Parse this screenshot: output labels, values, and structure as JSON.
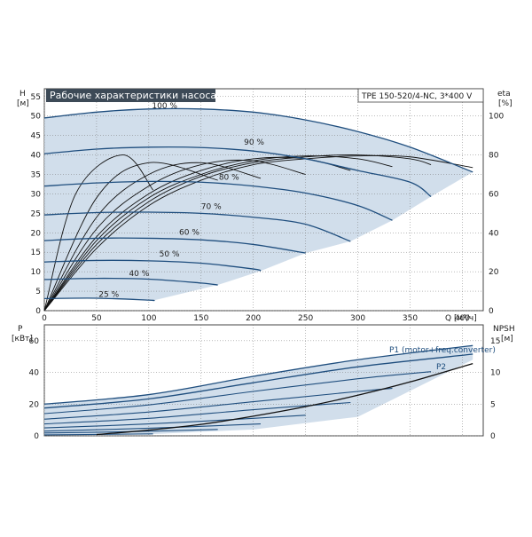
{
  "chart_data": [
    {
      "type": "line",
      "title": "Рабочие характеристики насоса",
      "model": "TPE 150-520/4-NC, 3*400 V",
      "ylabel": "H",
      "ylabel_unit": "[м]",
      "y2label": "eta",
      "y2label_unit": "[%]",
      "xlabel_unit": "Q [м³/ч]",
      "xlim": [
        0,
        420
      ],
      "ylim": [
        0,
        57
      ],
      "y2lim": [
        0,
        114
      ],
      "x_ticks": [
        0,
        50,
        100,
        150,
        200,
        250,
        300,
        350,
        400
      ],
      "y_ticks": [
        0,
        5,
        10,
        15,
        20,
        25,
        30,
        35,
        40,
        45,
        50,
        55
      ],
      "y2_ticks": [
        0,
        20,
        40,
        60,
        80,
        100
      ],
      "grid": true,
      "operating_range_color": "#c9d8e7",
      "curve_color": "#1f4e7e",
      "head_curves": [
        {
          "name": "100 %",
          "label_at": [
            103,
            51.3
          ],
          "points": [
            [
              0,
              49.5
            ],
            [
              50,
              51
            ],
            [
              100,
              51.8
            ],
            [
              150,
              51.8
            ],
            [
              200,
              51
            ],
            [
              250,
              49
            ],
            [
              300,
              46
            ],
            [
              350,
              42
            ],
            [
              410,
              35.6
            ]
          ]
        },
        {
          "name": "90 %",
          "label_at": [
            191,
            42
          ],
          "points": [
            [
              0,
              40.3
            ],
            [
              50,
              41.5
            ],
            [
              100,
              42
            ],
            [
              150,
              41.9
            ],
            [
              200,
              41
            ],
            [
              250,
              39
            ],
            [
              300,
              36
            ],
            [
              350,
              33
            ],
            [
              370,
              29.3
            ]
          ]
        },
        {
          "name": "80 %",
          "label_at": [
            167,
            33
          ],
          "points": [
            [
              0,
              32
            ],
            [
              50,
              32.8
            ],
            [
              100,
              33.2
            ],
            [
              150,
              33
            ],
            [
              200,
              32
            ],
            [
              250,
              30.2
            ],
            [
              300,
              27
            ],
            [
              333,
              23.2
            ]
          ]
        },
        {
          "name": "70 %",
          "label_at": [
            150,
            25.4
          ],
          "points": [
            [
              0,
              24.6
            ],
            [
              50,
              25.2
            ],
            [
              100,
              25.3
            ],
            [
              150,
              25
            ],
            [
              200,
              24
            ],
            [
              250,
              22.2
            ],
            [
              293,
              17.8
            ]
          ]
        },
        {
          "name": "60 %",
          "label_at": [
            129,
            18.8
          ],
          "points": [
            [
              0,
              18
            ],
            [
              50,
              18.6
            ],
            [
              100,
              18.6
            ],
            [
              150,
              18.2
            ],
            [
              200,
              17
            ],
            [
              250,
              14.8
            ]
          ]
        },
        {
          "name": "50 %",
          "label_at": [
            110,
            13.2
          ],
          "points": [
            [
              0,
              12.5
            ],
            [
              50,
              12.9
            ],
            [
              100,
              12.8
            ],
            [
              150,
              12.2
            ],
            [
              200,
              10.7
            ],
            [
              207,
              10.2
            ]
          ]
        },
        {
          "name": "40 %",
          "label_at": [
            81,
            8.2
          ],
          "points": [
            [
              0,
              8
            ],
            [
              50,
              8.3
            ],
            [
              100,
              8.1
            ],
            [
              150,
              7.1
            ],
            [
              166,
              6.6
            ]
          ]
        },
        {
          "name": "25 %",
          "label_at": [
            52,
            2.8
          ],
          "points": [
            [
              0,
              3.1
            ],
            [
              50,
              3.2
            ],
            [
              100,
              2.7
            ],
            [
              104,
              2.6
            ]
          ]
        }
      ],
      "eta_curves": [
        {
          "name": "eta 100 %",
          "points": [
            [
              0,
              0
            ],
            [
              50,
              32
            ],
            [
              100,
              54
            ],
            [
              150,
              67
            ],
            [
              200,
              75
            ],
            [
              250,
              78
            ],
            [
              300,
              79.5
            ],
            [
              350,
              79
            ],
            [
              410,
              73.5
            ]
          ]
        },
        {
          "name": "eta 90 %",
          "points": [
            [
              0,
              0
            ],
            [
              50,
              34
            ],
            [
              100,
              56
            ],
            [
              150,
              69
            ],
            [
              200,
              76
            ],
            [
              250,
              79
            ],
            [
              300,
              80
            ],
            [
              350,
              78
            ],
            [
              370,
              75
            ]
          ]
        },
        {
          "name": "eta 80 %",
          "points": [
            [
              0,
              0
            ],
            [
              50,
              36
            ],
            [
              100,
              58
            ],
            [
              150,
              70
            ],
            [
              200,
              77
            ],
            [
              250,
              79.5
            ],
            [
              300,
              78
            ],
            [
              333,
              74
            ]
          ]
        },
        {
          "name": "eta 70 %",
          "points": [
            [
              0,
              0
            ],
            [
              50,
              38
            ],
            [
              100,
              60
            ],
            [
              150,
              72
            ],
            [
              200,
              78
            ],
            [
              250,
              78
            ],
            [
              293,
              72
            ]
          ]
        },
        {
          "name": "eta 60 %",
          "points": [
            [
              0,
              0
            ],
            [
              50,
              42
            ],
            [
              100,
              64
            ],
            [
              150,
              75
            ],
            [
              200,
              77
            ],
            [
              250,
              70
            ]
          ]
        },
        {
          "name": "eta 50 %",
          "points": [
            [
              0,
              0
            ],
            [
              50,
              48
            ],
            [
              100,
              70
            ],
            [
              150,
              76
            ],
            [
              207,
              68
            ]
          ]
        },
        {
          "name": "eta 40 %",
          "points": [
            [
              0,
              0
            ],
            [
              50,
              58
            ],
            [
              100,
              76
            ],
            [
              166,
              67
            ]
          ]
        },
        {
          "name": "eta 25 %",
          "points": [
            [
              0,
              0
            ],
            [
              30,
              60
            ],
            [
              75,
              80
            ],
            [
              104,
              62
            ]
          ]
        }
      ]
    },
    {
      "type": "line",
      "ylabel": "P",
      "ylabel_unit": "[кВт]",
      "y2label": "NPSH",
      "y2label_unit": "[м]",
      "xlim": [
        0,
        420
      ],
      "ylim": [
        0,
        70
      ],
      "y2lim": [
        0,
        17.5
      ],
      "y_ticks": [
        0,
        20,
        40,
        60
      ],
      "y2_ticks": [
        0,
        5,
        10,
        15
      ],
      "grid": true,
      "operating_range_color": "#c9d8e7",
      "series": [
        {
          "name": "P1 (motor+freq.converter)",
          "points": [
            [
              0,
              20
            ],
            [
              100,
              26
            ],
            [
              200,
              37.5
            ],
            [
              300,
              48
            ],
            [
              410,
              57
            ]
          ]
        },
        {
          "name": "P2",
          "points": [
            [
              0,
              17.5
            ],
            [
              100,
              23.3
            ],
            [
              200,
              33.5
            ],
            [
              300,
              43.5
            ],
            [
              410,
              51.5
            ]
          ]
        }
      ],
      "power_curves": [
        {
          "name": "P 90 %",
          "points": [
            [
              0,
              14
            ],
            [
              100,
              19.5
            ],
            [
              200,
              28
            ],
            [
              300,
              36
            ],
            [
              370,
              40.5
            ]
          ]
        },
        {
          "name": "P 80 %",
          "points": [
            [
              0,
              10.5
            ],
            [
              100,
              15
            ],
            [
              200,
              21.5
            ],
            [
              300,
              28
            ],
            [
              333,
              30
            ]
          ]
        },
        {
          "name": "P 70 %",
          "points": [
            [
              0,
              7.5
            ],
            [
              100,
              11
            ],
            [
              200,
              16.5
            ],
            [
              293,
              21
            ]
          ]
        },
        {
          "name": "P 60 %",
          "points": [
            [
              0,
              5
            ],
            [
              100,
              7.5
            ],
            [
              200,
              11
            ],
            [
              250,
              13
            ]
          ]
        },
        {
          "name": "P 50 %",
          "points": [
            [
              0,
              3
            ],
            [
              100,
              4.8
            ],
            [
              207,
              7.5
            ]
          ]
        },
        {
          "name": "P 40 %",
          "points": [
            [
              0,
              1.8
            ],
            [
              80,
              2.6
            ],
            [
              166,
              4
            ]
          ]
        },
        {
          "name": "P 25 %",
          "points": [
            [
              0,
              0.6
            ],
            [
              104,
              1.2
            ]
          ]
        }
      ],
      "npsh_curve": {
        "name": "NPSH",
        "points": [
          [
            50,
            0.2
          ],
          [
            100,
            0.9
          ],
          [
            150,
            1.8
          ],
          [
            200,
            3.1
          ],
          [
            250,
            4.6
          ],
          [
            300,
            6.4
          ],
          [
            350,
            8.5
          ],
          [
            410,
            11.4
          ]
        ]
      }
    }
  ]
}
